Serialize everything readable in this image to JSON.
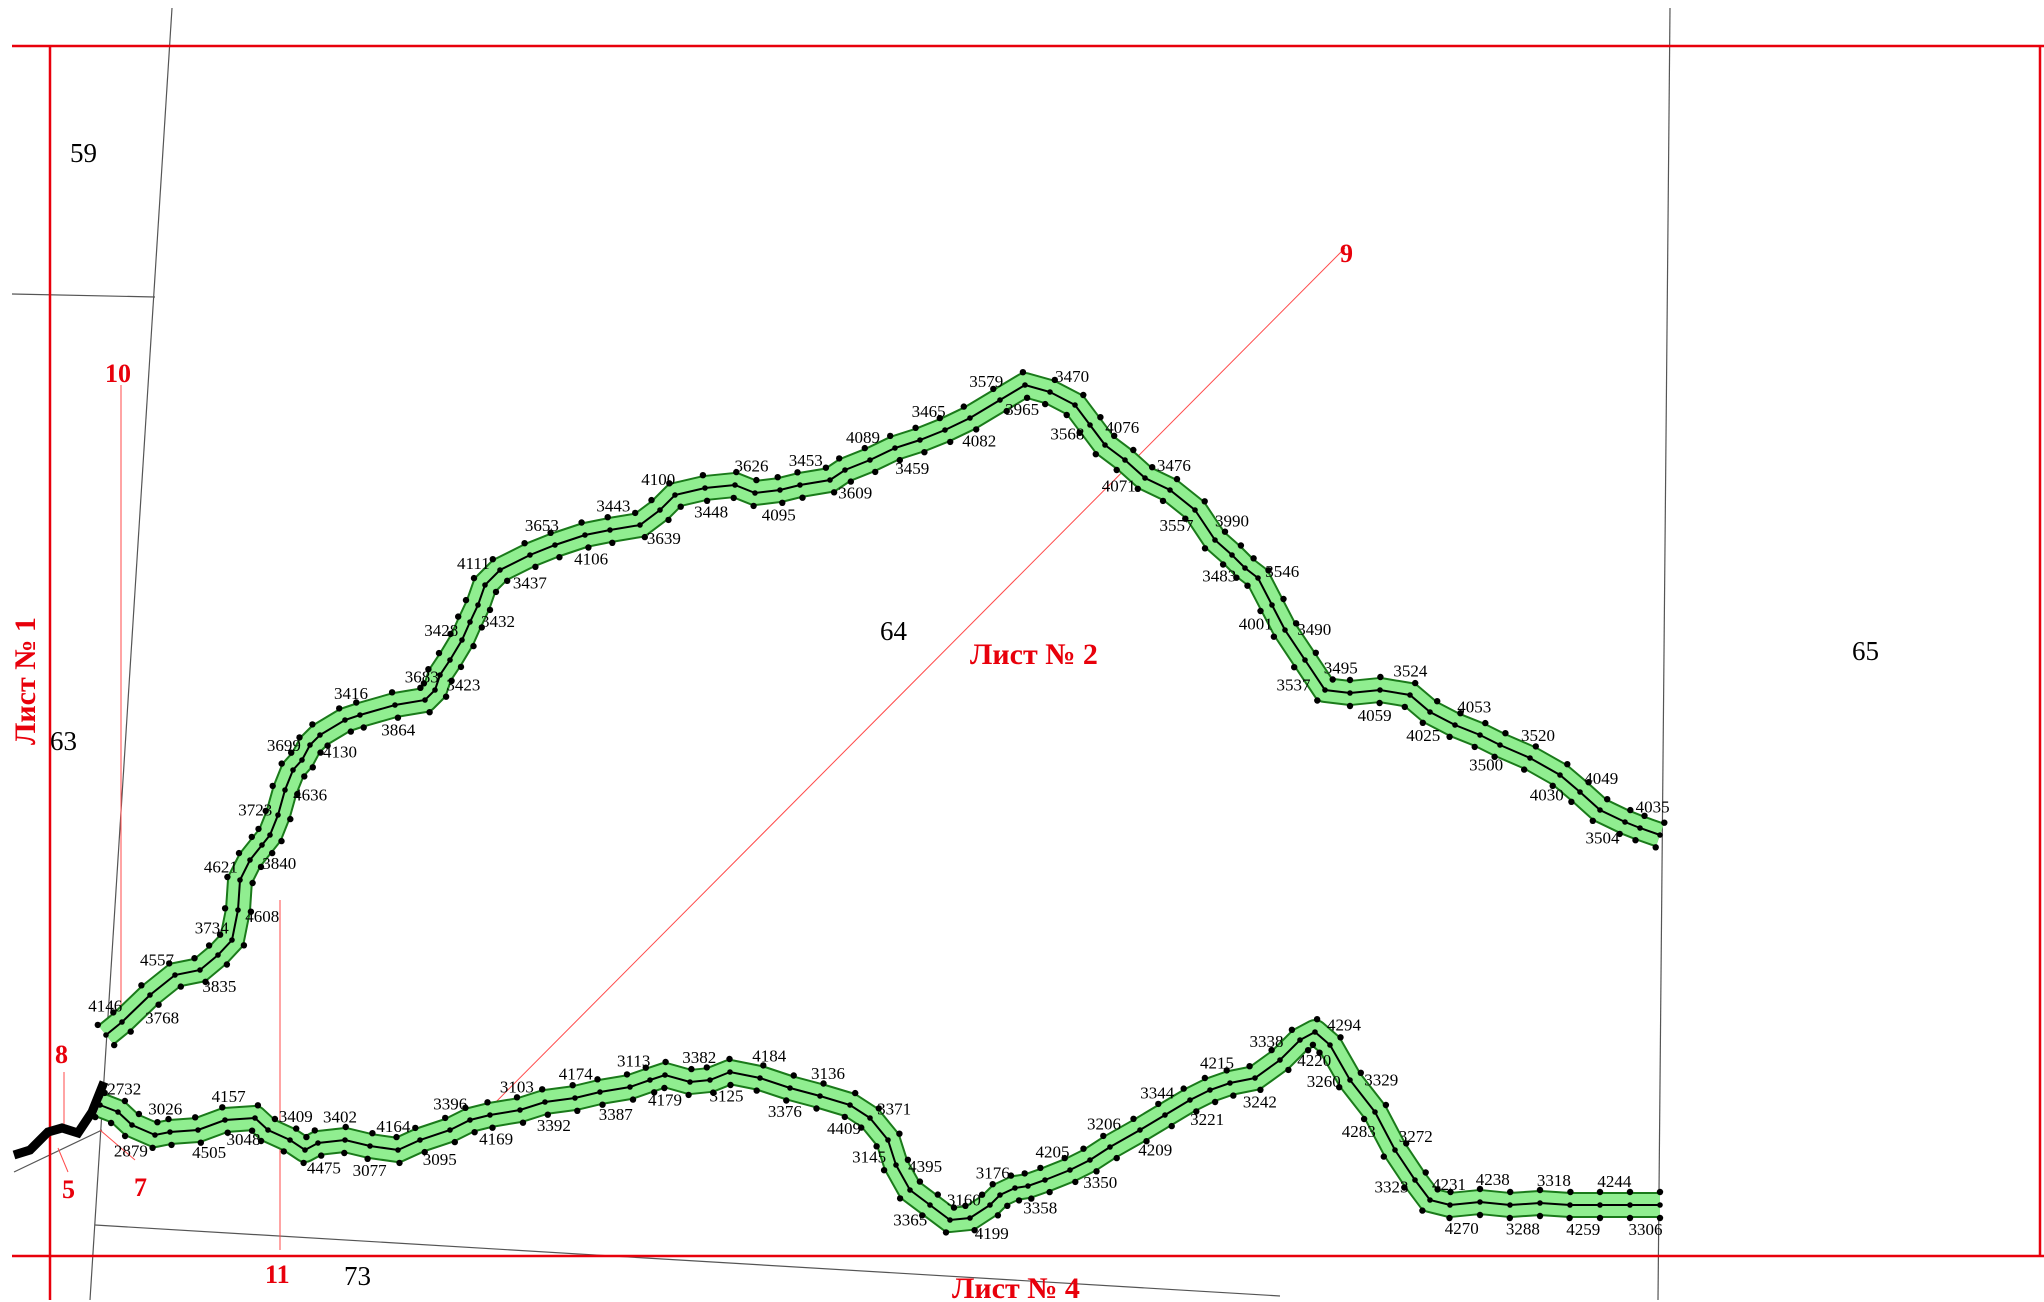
{
  "colors": {
    "sheet_frame": "#e8000b",
    "boundary_lines": "#555555",
    "corridor_fill": "#90ee90",
    "corridor_edge": "#1a7a1a",
    "vertex": "#000000",
    "centerline": "#000000"
  },
  "parcels": [
    "59",
    "63",
    "64",
    "65",
    "73"
  ],
  "sheets": {
    "left": "Лист № 1",
    "center": "Лист № 2",
    "bottom": "Лист № 4"
  },
  "markers": [
    "5",
    "7",
    "8",
    "9",
    "10",
    "11"
  ],
  "upper_route_points": [
    "4146",
    "3768",
    "4557",
    "3835",
    "3734",
    "4608",
    "4621",
    "3840",
    "3723",
    "4636",
    "3699",
    "4130",
    "3416",
    "3864",
    "3683",
    "3423",
    "3428",
    "3432",
    "4111",
    "3437",
    "3653",
    "4106",
    "3443",
    "3639",
    "4100",
    "3448",
    "3626",
    "4095",
    "3453",
    "3609",
    "4089",
    "3459",
    "3465",
    "4082",
    "3579",
    "3965",
    "3470",
    "3568",
    "4076",
    "4071",
    "3476",
    "3557",
    "3990",
    "3483",
    "3546",
    "4001",
    "3490",
    "3537",
    "3495",
    "4059",
    "3524",
    "4025",
    "4053",
    "3500",
    "3520",
    "4030",
    "4049",
    "3504",
    "4035"
  ],
  "lower_route_points": [
    "2732",
    "2879",
    "3026",
    "4505",
    "4157",
    "3048",
    "3409",
    "4475",
    "3402",
    "3077",
    "4164",
    "3095",
    "3396",
    "4169",
    "3103",
    "3392",
    "4174",
    "3387",
    "3113",
    "4179",
    "3382",
    "3125",
    "4184",
    "3376",
    "3136",
    "4409",
    "3371",
    "3145",
    "4395",
    "3365",
    "3160",
    "4199",
    "3176",
    "3358",
    "4205",
    "3350",
    "3206",
    "4209",
    "3344",
    "3221",
    "4215",
    "3242",
    "3338",
    "4220",
    "4294",
    "3260",
    "3329",
    "4283",
    "3272",
    "3323",
    "4231",
    "4270",
    "4238",
    "3288",
    "3318",
    "4259",
    "4244",
    "3306"
  ]
}
